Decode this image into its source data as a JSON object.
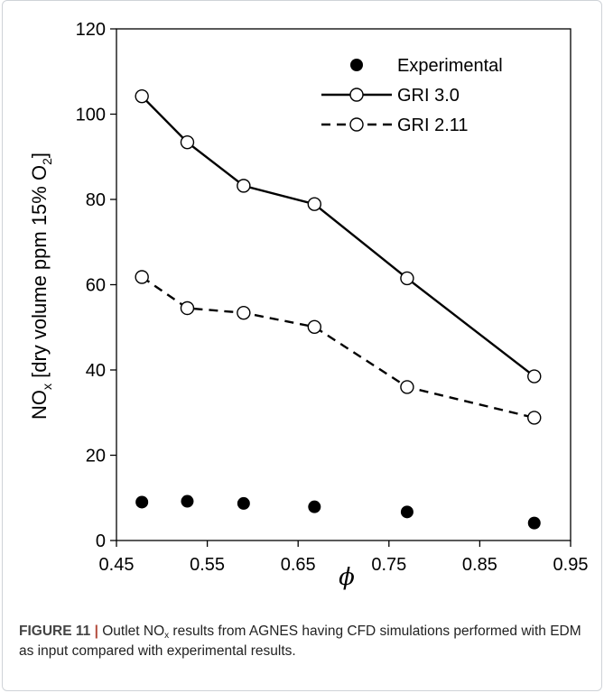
{
  "chart_data": {
    "type": "scatter",
    "xlabel": "ϕ",
    "ylabel_parts": {
      "main": "NO",
      "sub1": "x",
      "mid": " [dry volume ppm 15% O",
      "sub2": "2",
      "end": "]"
    },
    "xlim": [
      0.45,
      0.95
    ],
    "ylim": [
      0,
      120
    ],
    "x_ticks": [
      "0.45",
      "0.55",
      "0.65",
      "0.75",
      "0.85",
      "0.95"
    ],
    "y_ticks": [
      "0",
      "20",
      "40",
      "60",
      "80",
      "100",
      "120"
    ],
    "grid": false,
    "legend_position": "top-right",
    "series": [
      {
        "name": "Experimental",
        "style": "filled-marker",
        "x": [
          0.478,
          0.528,
          0.59,
          0.668,
          0.77,
          0.91
        ],
        "y": [
          9.0,
          9.2,
          8.7,
          7.9,
          6.7,
          4.1
        ]
      },
      {
        "name": "GRI 3.0",
        "style": "solid-line-open-marker",
        "x": [
          0.478,
          0.528,
          0.59,
          0.668,
          0.77,
          0.91
        ],
        "y": [
          104.2,
          93.4,
          83.2,
          78.9,
          61.5,
          38.5
        ]
      },
      {
        "name": "GRI 2.11",
        "style": "dashed-line-open-marker",
        "x": [
          0.478,
          0.528,
          0.59,
          0.668,
          0.77,
          0.91
        ],
        "y": [
          61.8,
          54.5,
          53.4,
          50.1,
          36.0,
          28.8
        ]
      }
    ]
  },
  "caption": {
    "label": "FIGURE 11",
    "separator": "|",
    "text_before": " Outlet NO",
    "text_sub": "x",
    "text_after": " results from AGNES having CFD simulations performed with EDM as input compared with experimental results."
  }
}
